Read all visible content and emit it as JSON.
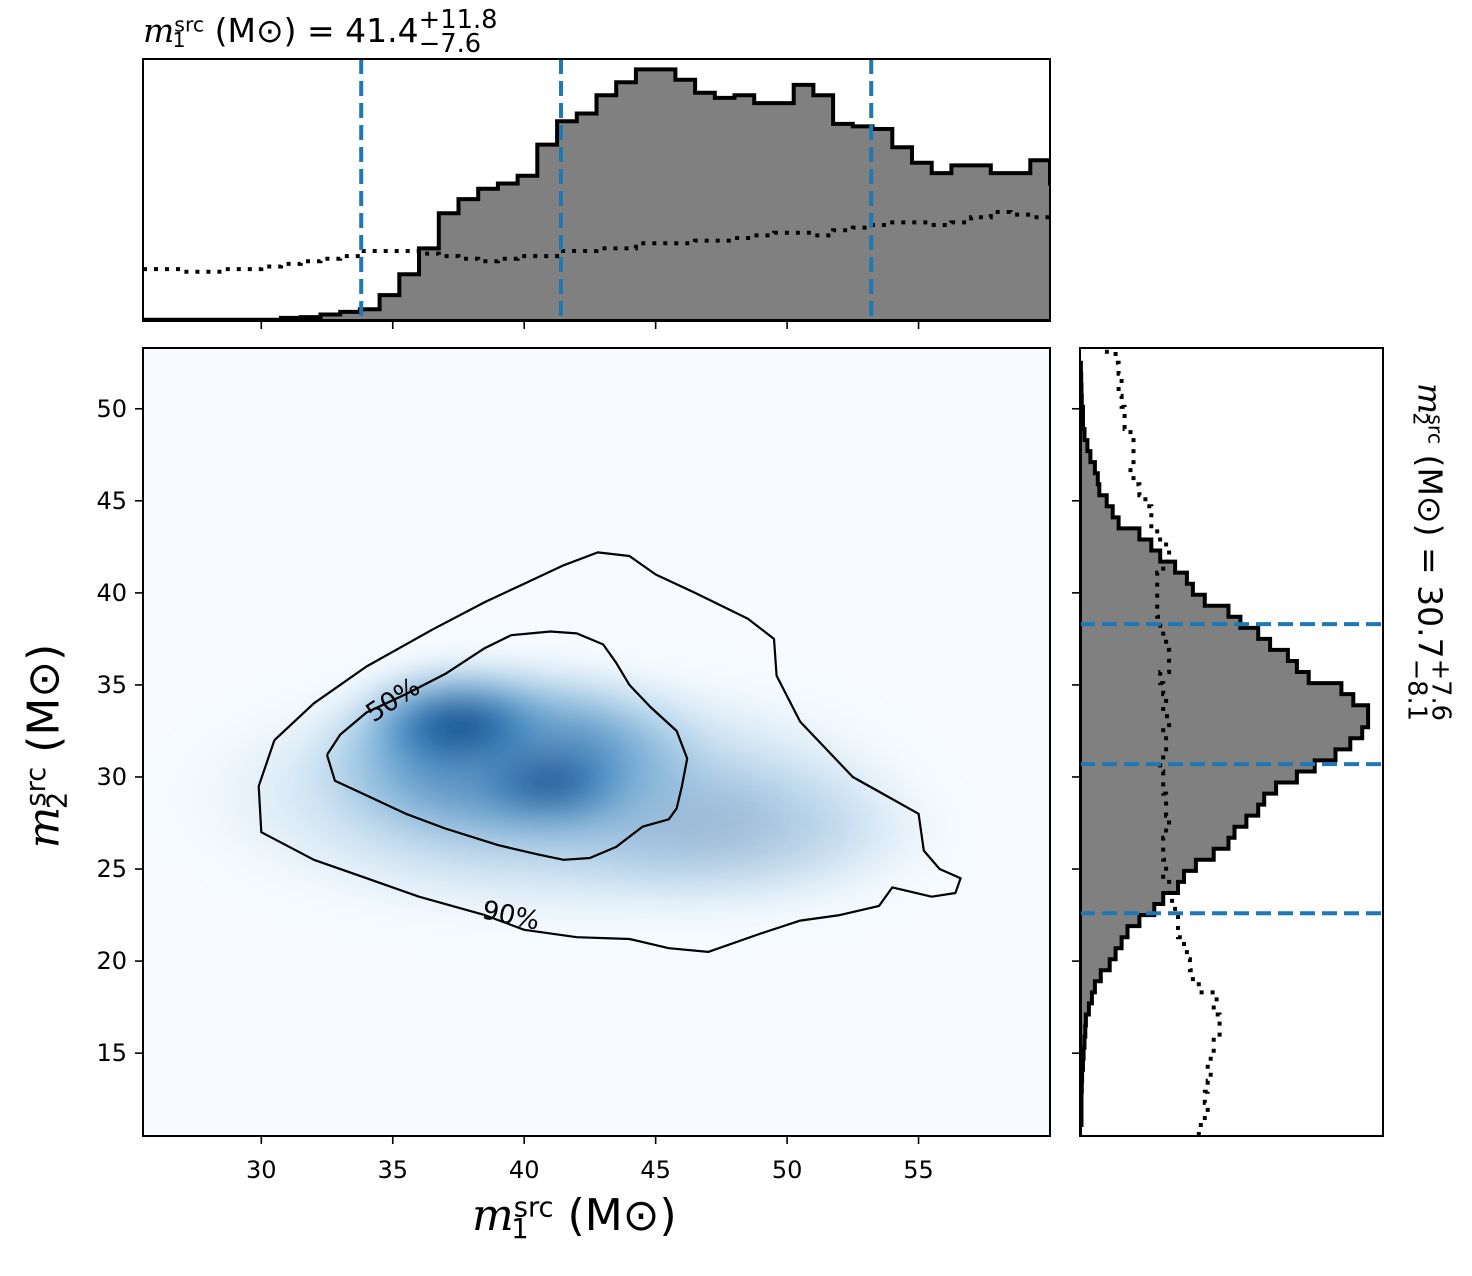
{
  "chart_data": {
    "type": "corner-plot",
    "parameters": [
      {
        "symbol": "m",
        "index": "1",
        "superscript": "src",
        "unit": "M⊙"
      },
      {
        "symbol": "m",
        "index": "2",
        "superscript": "src",
        "unit": "M⊙"
      }
    ],
    "top_title": {
      "prefix": "= ",
      "median": "41.4",
      "plus": "+11.8",
      "minus": "−7.6"
    },
    "right_title": {
      "prefix": "= ",
      "median": "30.7",
      "plus": "+7.6",
      "minus": "−8.1"
    },
    "joint": {
      "xlim": [
        25.5,
        60
      ],
      "ylim": [
        10.5,
        53.3
      ],
      "xticks": [
        "30",
        "35",
        "40",
        "45",
        "50",
        "55"
      ],
      "yticks": [
        "15",
        "20",
        "25",
        "30",
        "35",
        "40",
        "45",
        "50"
      ],
      "density_peak": [
        37.5,
        32.8
      ],
      "contours": [
        {
          "label": "50%",
          "label_at": [
            35.0,
            34.2
          ],
          "label_angle": -33,
          "points": [
            [
              32.5,
              31.2
            ],
            [
              33.0,
              32.3
            ],
            [
              34.0,
              33.5
            ],
            [
              35.5,
              34.5
            ],
            [
              37.0,
              35.6
            ],
            [
              38.5,
              37.0
            ],
            [
              39.5,
              37.7
            ],
            [
              41.0,
              37.9
            ],
            [
              42.0,
              37.8
            ],
            [
              43.0,
              37.2
            ],
            [
              43.5,
              36.2
            ],
            [
              44.0,
              35.0
            ],
            [
              44.8,
              33.8
            ],
            [
              45.8,
              32.5
            ],
            [
              46.2,
              31.0
            ],
            [
              46.0,
              29.5
            ],
            [
              45.8,
              28.3
            ],
            [
              45.5,
              27.7
            ],
            [
              44.5,
              27.3
            ],
            [
              43.5,
              26.2
            ],
            [
              42.5,
              25.6
            ],
            [
              41.5,
              25.5
            ],
            [
              40.5,
              25.8
            ],
            [
              39.0,
              26.3
            ],
            [
              37.0,
              27.2
            ],
            [
              35.5,
              28.0
            ],
            [
              34.0,
              29.0
            ],
            [
              32.8,
              29.8
            ],
            [
              32.5,
              31.2
            ]
          ]
        },
        {
          "label": "90%",
          "label_at": [
            39.5,
            22.5
          ],
          "label_angle": 12,
          "points": [
            [
              30.5,
              32.0
            ],
            [
              32.0,
              34.0
            ],
            [
              34.0,
              36.0
            ],
            [
              36.5,
              38.0
            ],
            [
              38.5,
              39.5
            ],
            [
              40.0,
              40.5
            ],
            [
              41.5,
              41.5
            ],
            [
              42.8,
              42.2
            ],
            [
              44.0,
              42.0
            ],
            [
              45.0,
              41.0
            ],
            [
              46.5,
              40.0
            ],
            [
              48.5,
              38.6
            ],
            [
              49.5,
              37.5
            ],
            [
              49.6,
              35.5
            ],
            [
              50.5,
              33.0
            ],
            [
              52.5,
              30.0
            ],
            [
              55.0,
              28.0
            ],
            [
              55.2,
              26.0
            ],
            [
              55.8,
              25.0
            ],
            [
              56.6,
              24.5
            ],
            [
              56.4,
              23.7
            ],
            [
              55.5,
              23.5
            ],
            [
              54.0,
              24.0
            ],
            [
              53.5,
              23.0
            ],
            [
              52.0,
              22.5
            ],
            [
              50.5,
              22.2
            ],
            [
              49.0,
              21.5
            ],
            [
              47.0,
              20.5
            ],
            [
              45.5,
              20.7
            ],
            [
              44.0,
              21.2
            ],
            [
              42.0,
              21.3
            ],
            [
              40.0,
              21.7
            ],
            [
              38.5,
              22.5
            ],
            [
              36.0,
              23.5
            ],
            [
              34.0,
              24.5
            ],
            [
              32.0,
              25.5
            ],
            [
              30.0,
              27.0
            ],
            [
              29.9,
              29.5
            ],
            [
              30.5,
              32.0
            ]
          ]
        }
      ]
    },
    "top_marginal": {
      "xlim": [
        25.5,
        60
      ],
      "quantile_lines": [
        33.8,
        41.4,
        53.2
      ],
      "hist_bin_width": 0.75,
      "hist_counts": [
        0.5,
        0.5,
        0.5,
        0.5,
        0.5,
        0.5,
        0.5,
        1.2,
        1.5,
        2.5,
        3.5,
        4.5,
        10,
        18,
        28,
        41.5,
        47,
        51,
        53,
        56,
        68,
        77,
        80,
        87,
        92,
        97,
        97,
        93,
        88,
        86,
        87,
        84,
        84,
        91,
        87,
        76,
        75,
        74,
        67,
        61,
        57,
        60,
        60,
        57,
        57,
        62,
        53,
        45,
        41,
        34,
        31,
        30,
        27,
        26,
        26,
        23,
        22,
        19,
        19,
        18,
        17.5,
        16,
        15,
        15,
        14,
        13.5,
        13,
        14,
        12.5,
        10.5,
        9.5,
        8.5,
        8,
        7.5,
        7,
        6.5,
        6,
        5.5,
        7,
        7.5
      ],
      "prior_counts": [
        20,
        20,
        19,
        19,
        20,
        20,
        21,
        22,
        23,
        24,
        25,
        27,
        27,
        27,
        26,
        25,
        24,
        23,
        24,
        25,
        25,
        27,
        27,
        28,
        28,
        30,
        30,
        30,
        31,
        31,
        32,
        33,
        34,
        34,
        33,
        35,
        36,
        37,
        38,
        38,
        37,
        38,
        40,
        42,
        41,
        40,
        40,
        41,
        44,
        44,
        43,
        44,
        40,
        42,
        45,
        46,
        47,
        47,
        45,
        46,
        45,
        47,
        48,
        46,
        46,
        46,
        47,
        46,
        49,
        50,
        54,
        56,
        56,
        54,
        51,
        53,
        56,
        54,
        57
      ],
      "ymax": 101
    },
    "right_marginal": {
      "ylim": [
        10.5,
        53.3
      ],
      "quantile_lines": [
        22.6,
        30.7,
        38.3
      ],
      "hist_bin_width": 0.6,
      "hist_counts": [
        0,
        0.5,
        0.5,
        0.5,
        0.6,
        0.7,
        1,
        1.2,
        1.5,
        1.8,
        2,
        3,
        4,
        5,
        7,
        10,
        12,
        14,
        16,
        20,
        25,
        28,
        33,
        35,
        39,
        45,
        50,
        52,
        56,
        60,
        62,
        66,
        73,
        79,
        86,
        91,
        95,
        97,
        97,
        92,
        88,
        77,
        73,
        70,
        64,
        60,
        54,
        50,
        42,
        38,
        36,
        32,
        27,
        24,
        20,
        13,
        11,
        9,
        6.5,
        6,
        5,
        3.5,
        2.5,
        1.5,
        1,
        1,
        0.6,
        0.5,
        0.4,
        0.3
      ],
      "prior_counts": [
        40,
        42,
        43,
        42,
        43,
        44,
        43,
        45,
        45,
        47,
        47,
        45,
        46,
        40,
        38,
        37,
        36,
        35,
        33,
        33,
        32,
        31,
        30,
        28,
        29,
        28,
        28,
        29,
        30,
        29,
        29,
        28,
        28,
        27,
        28,
        29,
        28,
        30,
        28,
        29,
        28,
        27,
        30,
        30,
        29,
        28,
        27,
        26,
        26,
        26,
        26,
        28,
        30,
        29,
        26,
        24,
        24,
        22,
        20,
        18,
        17,
        18,
        18,
        17,
        15,
        15,
        14,
        13,
        14,
        13,
        12,
        7,
        7
      ],
      "xmax": 102
    }
  }
}
